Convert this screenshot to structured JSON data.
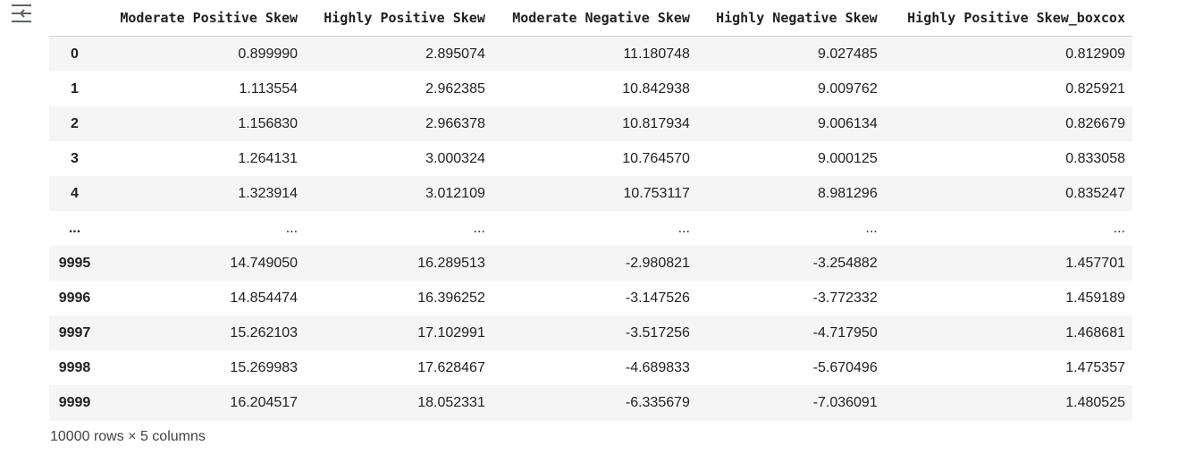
{
  "toolbar": {
    "toggle_icon": "collapse-output-icon"
  },
  "dataframe": {
    "columns": [
      "Moderate Positive Skew",
      "Highly Positive Skew",
      "Moderate Negative Skew",
      "Highly Negative Skew",
      "Highly Positive Skew_boxcox"
    ],
    "rows": [
      {
        "index": "0",
        "cells": [
          "0.899990",
          "2.895074",
          "11.180748",
          "9.027485",
          "0.812909"
        ]
      },
      {
        "index": "1",
        "cells": [
          "1.113554",
          "2.962385",
          "10.842938",
          "9.009762",
          "0.825921"
        ]
      },
      {
        "index": "2",
        "cells": [
          "1.156830",
          "2.966378",
          "10.817934",
          "9.006134",
          "0.826679"
        ]
      },
      {
        "index": "3",
        "cells": [
          "1.264131",
          "3.000324",
          "10.764570",
          "9.000125",
          "0.833058"
        ]
      },
      {
        "index": "4",
        "cells": [
          "1.323914",
          "3.012109",
          "10.753117",
          "8.981296",
          "0.835247"
        ]
      },
      {
        "index": "...",
        "cells": [
          "...",
          "...",
          "...",
          "...",
          "..."
        ]
      },
      {
        "index": "9995",
        "cells": [
          "14.749050",
          "16.289513",
          "-2.980821",
          "-3.254882",
          "1.457701"
        ]
      },
      {
        "index": "9996",
        "cells": [
          "14.854474",
          "16.396252",
          "-3.147526",
          "-3.772332",
          "1.459189"
        ]
      },
      {
        "index": "9997",
        "cells": [
          "15.262103",
          "17.102991",
          "-3.517256",
          "-4.717950",
          "1.468681"
        ]
      },
      {
        "index": "9998",
        "cells": [
          "15.269983",
          "17.628467",
          "-4.689833",
          "-5.670496",
          "1.475357"
        ]
      },
      {
        "index": "9999",
        "cells": [
          "16.204517",
          "18.052331",
          "-6.335679",
          "-7.036091",
          "1.480525"
        ]
      }
    ],
    "shape_caption": "10000 rows × 5 columns"
  }
}
